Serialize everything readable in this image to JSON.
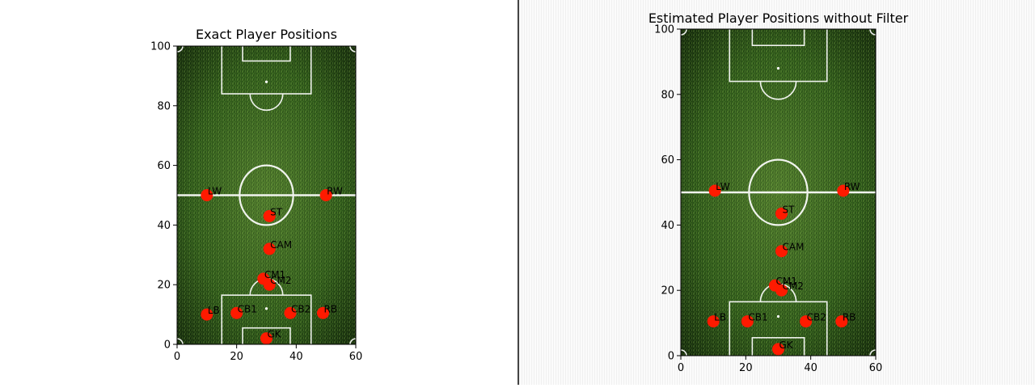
{
  "chart_data": [
    {
      "type": "scatter",
      "title": "Exact Player Positions",
      "xlim": [
        0,
        60
      ],
      "ylim": [
        0,
        100
      ],
      "xticks": [
        0,
        20,
        40,
        60
      ],
      "yticks": [
        0,
        20,
        40,
        60,
        80,
        100
      ],
      "grid": false,
      "background": "soccer-pitch",
      "point_color": "#ff1a00",
      "points": [
        {
          "label": "LW",
          "x": 10,
          "y": 50
        },
        {
          "label": "RW",
          "x": 50,
          "y": 50
        },
        {
          "label": "ST",
          "x": 31,
          "y": 43
        },
        {
          "label": "CAM",
          "x": 31,
          "y": 32
        },
        {
          "label": "CM1",
          "x": 29,
          "y": 22
        },
        {
          "label": "CM2",
          "x": 31,
          "y": 20
        },
        {
          "label": "LB",
          "x": 10,
          "y": 10
        },
        {
          "label": "CB1",
          "x": 20,
          "y": 10.5
        },
        {
          "label": "CB2",
          "x": 38,
          "y": 10.5
        },
        {
          "label": "RB",
          "x": 49,
          "y": 10.5
        },
        {
          "label": "GK",
          "x": 30,
          "y": 2
        }
      ]
    },
    {
      "type": "scatter",
      "title": "Estimated Player Positions without Filter",
      "xlim": [
        0,
        60
      ],
      "ylim": [
        0,
        100
      ],
      "xticks": [
        0,
        20,
        40,
        60
      ],
      "yticks": [
        0,
        20,
        40,
        60,
        80,
        100
      ],
      "grid": false,
      "background": "soccer-pitch",
      "point_color": "#ff1a00",
      "points": [
        {
          "label": "LW",
          "x": 10.5,
          "y": 50.5
        },
        {
          "label": "RW",
          "x": 50,
          "y": 50.5
        },
        {
          "label": "ST",
          "x": 31,
          "y": 43.5
        },
        {
          "label": "CAM",
          "x": 31,
          "y": 32
        },
        {
          "label": "CM1",
          "x": 29,
          "y": 21.5
        },
        {
          "label": "CM2",
          "x": 31,
          "y": 20
        },
        {
          "label": "LB",
          "x": 10,
          "y": 10.5
        },
        {
          "label": "CB1",
          "x": 20.5,
          "y": 10.5
        },
        {
          "label": "CB2",
          "x": 38.5,
          "y": 10.5
        },
        {
          "label": "RB",
          "x": 49.5,
          "y": 10.5
        },
        {
          "label": "GK",
          "x": 30,
          "y": 2
        }
      ]
    }
  ]
}
